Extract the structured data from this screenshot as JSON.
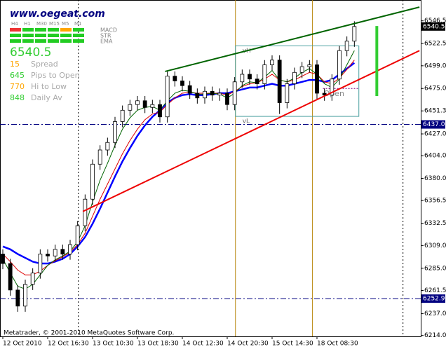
{
  "chart_data": {
    "type": "candlestick",
    "site": "www.oegeat.com",
    "timeframes": [
      "H4",
      "H1",
      "M30",
      "M15",
      "M5",
      "M1"
    ],
    "indicators": [
      "MACD",
      "STR",
      "EMA"
    ],
    "price": "6540.5",
    "stats": [
      {
        "value": "15",
        "label": "Spread",
        "color": "#ffa500"
      },
      {
        "value": "645",
        "label": "Pips to Open",
        "color": "#32cd32"
      },
      {
        "value": "770",
        "label": "Hi to Low",
        "color": "#ffa500"
      },
      {
        "value": "848",
        "label": "Daily Av",
        "color": "#32cd32"
      }
    ],
    "footer": "Metatrader, © 2001-2010 MetaQuotes Software Corp.",
    "xlabels": [
      "12 Oct 2010",
      "12 Oct 16:30",
      "13 Oct 10:30",
      "13 Oct 18:30",
      "14 Oct 12:30",
      "14 Oct 20:30",
      "15 Oct 14:30",
      "18 Oct 08:30"
    ],
    "ylim": [
      6213,
      6568.5
    ],
    "yticks": [
      6546.5,
      6522.5,
      {
        "value": 6499,
        "label": "6499.0"
      },
      {
        "value": 6475,
        "label": "6475.0"
      },
      6451.3,
      {
        "value": 6427,
        "label": "6427.0"
      },
      {
        "value": 6404,
        "label": "6404.0"
      },
      {
        "value": 6380,
        "label": "6380.0"
      },
      6356.5,
      6332.5,
      {
        "value": 6309,
        "label": "6309.0"
      },
      {
        "value": 6285,
        "label": "6285.0"
      },
      6261.5,
      {
        "value": 6237,
        "label": "6237.0"
      },
      {
        "value": 6214,
        "label": "6214.0"
      }
    ],
    "open": [
      6300,
      6290,
      6262,
      6245,
      6268,
      6280,
      6300,
      6298,
      6305,
      6300,
      6310,
      6330,
      6358,
      6395,
      6410,
      6418,
      6440,
      6452,
      6458,
      6462,
      6455,
      6458,
      6445,
      6488,
      6483,
      6478,
      6470,
      6465,
      6472,
      6468,
      6470,
      6458,
      6482,
      6490,
      6485,
      6480,
      6500,
      6505,
      6460,
      6480,
      6492,
      6498,
      6500,
      6470,
      6468,
      6485,
      6515,
      6525
    ],
    "high": [
      6305,
      6295,
      6267,
      6273,
      6285,
      6305,
      6305,
      6310,
      6310,
      6315,
      6335,
      6363,
      6400,
      6415,
      6423,
      6445,
      6457,
      6463,
      6467,
      6467,
      6463,
      6463,
      6493,
      6493,
      6488,
      6483,
      6475,
      6477,
      6477,
      6475,
      6475,
      6487,
      6495,
      6495,
      6490,
      6505,
      6510,
      6510,
      6485,
      6497,
      6503,
      6505,
      6505,
      6475,
      6490,
      6520,
      6530,
      6546
    ],
    "low": [
      6284,
      6256,
      6239,
      6239,
      6262,
      6274,
      6292,
      6292,
      6294,
      6294,
      6304,
      6324,
      6352,
      6389,
      6404,
      6412,
      6434,
      6446,
      6452,
      6449,
      6449,
      6439,
      6439,
      6477,
      6472,
      6464,
      6459,
      6459,
      6462,
      6462,
      6452,
      6452,
      6476,
      6479,
      6474,
      6474,
      6494,
      6448,
      6454,
      6474,
      6486,
      6492,
      6464,
      6462,
      6462,
      6479,
      6509,
      6519
    ],
    "close": [
      6290,
      6262,
      6245,
      6268,
      6280,
      6300,
      6298,
      6305,
      6300,
      6310,
      6330,
      6358,
      6395,
      6410,
      6418,
      6440,
      6452,
      6458,
      6462,
      6455,
      6458,
      6445,
      6488,
      6483,
      6478,
      6470,
      6465,
      6472,
      6468,
      6470,
      6458,
      6482,
      6490,
      6485,
      6480,
      6500,
      6505,
      6460,
      6480,
      6492,
      6498,
      6500,
      6470,
      6468,
      6485,
      6515,
      6525,
      6540.5
    ],
    "ma": [
      {
        "color": "#0000ff",
        "width": 2.5,
        "values": [
          6308,
          6305,
          6300,
          6296,
          6292,
          6290,
          6290,
          6292,
          6295,
          6300,
          6308,
          6318,
          6332,
          6348,
          6365,
          6382,
          6398,
          6412,
          6425,
          6436,
          6445,
          6452,
          6460,
          6465,
          6468,
          6469,
          6468,
          6468,
          6469,
          6470,
          6470,
          6472,
          6474,
          6476,
          6476,
          6478,
          6480,
          6478,
          6478,
          6480,
          6482,
          6484,
          6484,
          6482,
          6484,
          6490,
          6496,
          6502
        ]
      },
      {
        "color": "#dd0000",
        "width": 1,
        "values": [
          6300,
          6292,
          6283,
          6278,
          6278,
          6282,
          6288,
          6293,
          6297,
          6302,
          6310,
          6322,
          6340,
          6358,
          6374,
          6390,
          6406,
          6420,
          6432,
          6442,
          6448,
          6450,
          6458,
          6465,
          6470,
          6471,
          6470,
          6470,
          6470,
          6470,
          6468,
          6472,
          6477,
          6480,
          6481,
          6485,
          6490,
          6484,
          6482,
          6484,
          6488,
          6492,
          6490,
          6482,
          6480,
          6486,
          6495,
          6505
        ]
      },
      {
        "color": "#006400",
        "width": 1,
        "values": [
          6295,
          6280,
          6266,
          6263,
          6268,
          6278,
          6288,
          6294,
          6298,
          6303,
          6313,
          6330,
          6355,
          6378,
          6396,
          6415,
          6432,
          6444,
          6452,
          6455,
          6456,
          6452,
          6462,
          6470,
          6473,
          6472,
          6469,
          6469,
          6470,
          6469,
          6465,
          6470,
          6478,
          6482,
          6481,
          6487,
          6494,
          6484,
          6482,
          6486,
          6492,
          6496,
          6490,
          6480,
          6476,
          6485,
          6500,
          6515
        ]
      }
    ],
    "trendlines": [
      {
        "color": "#006400",
        "x": [
          21.7,
          55.7
        ],
        "y": [
          6493,
          6561
        ]
      },
      {
        "color": "#ee0000",
        "x": [
          10.7,
          55.7
        ],
        "y": [
          6345,
          6515
        ]
      }
    ],
    "vlines": [
      {
        "x": 10.1,
        "color": "#000000",
        "style": "dotted"
      },
      {
        "x": 31.1,
        "color": "#b8860b",
        "style": "solid"
      },
      {
        "x": 41.4,
        "color": "#b8860b",
        "style": "solid"
      },
      {
        "x": 53.5,
        "color": "#000000",
        "style": "dotted"
      }
    ],
    "levels": [
      {
        "value": 6437,
        "label": "6437.0"
      },
      {
        "value": 6252.9,
        "label": "6252.9"
      }
    ],
    "box": {
      "x": [
        31.1,
        47.6
      ],
      "top": 6520,
      "bottom": 6445.5,
      "top_label": "vH",
      "bottom_label": "vL"
    },
    "open_line": {
      "value": 6475,
      "x": [
        42.8,
        47.6
      ],
      "label": "Open"
    },
    "range_bar": {
      "x": 50,
      "top": 6541,
      "bottom": 6467
    }
  }
}
